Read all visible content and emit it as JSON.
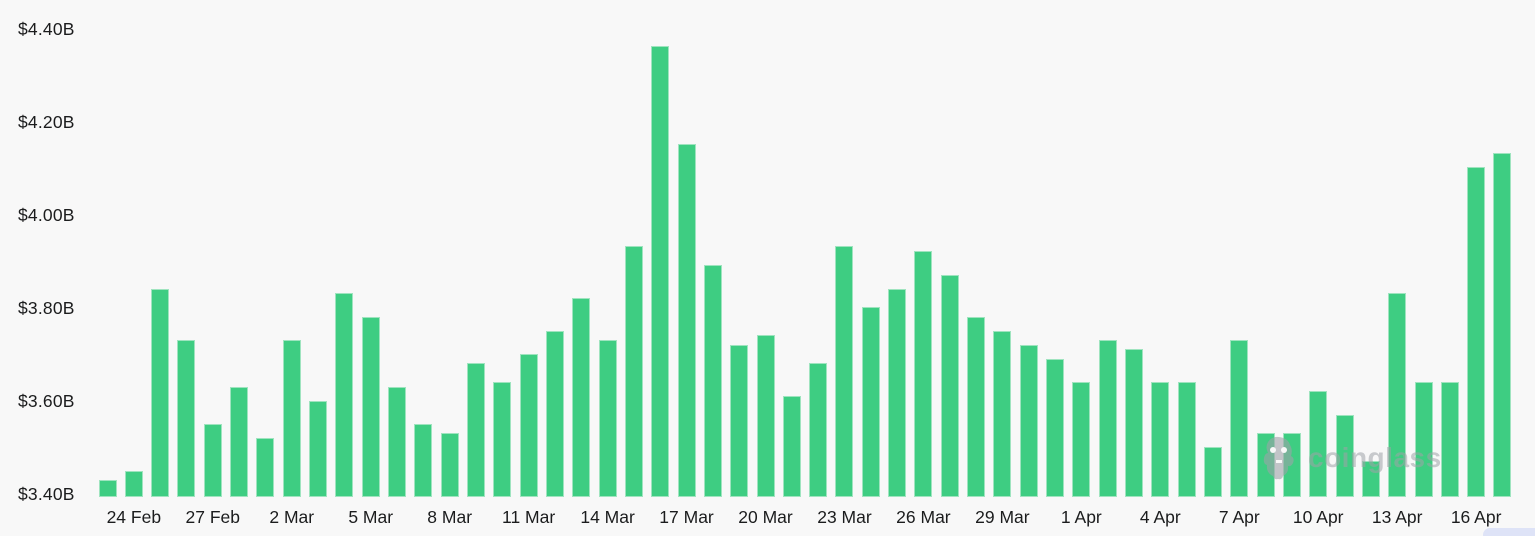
{
  "chart_data": {
    "type": "bar",
    "title": "",
    "xlabel": "",
    "ylabel": "",
    "unit": "USD billions",
    "grid": false,
    "legend": false,
    "bar_color": "#3ecd82",
    "background_color": "#f8f8f8",
    "ylim": [
      3.4,
      4.45
    ],
    "y_tick_labels": [
      "$4.40B",
      "$4.20B",
      "$4.00B",
      "$3.80B",
      "$3.60B",
      "$3.40B"
    ],
    "x_tick_labels": [
      "24 Feb",
      "27 Feb",
      "2 Mar",
      "5 Mar",
      "8 Mar",
      "11 Mar",
      "14 Mar",
      "17 Mar",
      "20 Mar",
      "23 Mar",
      "26 Mar",
      "29 Mar",
      "1 Apr",
      "4 Apr",
      "7 Apr",
      "10 Apr",
      "13 Apr",
      "16 Apr"
    ],
    "categories": [
      "23 Feb",
      "24 Feb",
      "25 Feb",
      "26 Feb",
      "27 Feb",
      "28 Feb",
      "1 Mar",
      "2 Mar",
      "3 Mar",
      "4 Mar",
      "5 Mar",
      "6 Mar",
      "7 Mar",
      "8 Mar",
      "9 Mar",
      "10 Mar",
      "11 Mar",
      "12 Mar",
      "13 Mar",
      "14 Mar",
      "15 Mar",
      "16 Mar",
      "17 Mar",
      "18 Mar",
      "19 Mar",
      "20 Mar",
      "21 Mar",
      "22 Mar",
      "23 Mar",
      "24 Mar",
      "25 Mar",
      "26 Mar",
      "27 Mar",
      "28 Mar",
      "29 Mar",
      "30 Mar",
      "31 Mar",
      "1 Apr",
      "2 Apr",
      "3 Apr",
      "4 Apr",
      "5 Apr",
      "6 Apr",
      "7 Apr",
      "8 Apr",
      "9 Apr",
      "10 Apr",
      "11 Apr",
      "12 Apr",
      "13 Apr",
      "14 Apr",
      "15 Apr",
      "16 Apr",
      "17 Apr"
    ],
    "values": [
      3.43,
      3.45,
      3.84,
      3.73,
      3.55,
      3.63,
      3.52,
      3.73,
      3.6,
      3.83,
      3.78,
      3.63,
      3.55,
      3.53,
      3.68,
      3.64,
      3.7,
      3.75,
      3.82,
      3.73,
      3.93,
      4.36,
      4.15,
      3.89,
      3.72,
      3.74,
      3.61,
      3.68,
      3.93,
      3.8,
      3.84,
      3.92,
      3.87,
      3.78,
      3.75,
      3.72,
      3.69,
      3.64,
      3.73,
      3.71,
      3.64,
      3.64,
      3.5,
      3.73,
      3.53,
      3.53,
      3.62,
      3.57,
      3.47,
      3.83,
      3.64,
      3.64,
      4.1,
      4.13
    ]
  },
  "watermark": {
    "text": "coinglass"
  }
}
